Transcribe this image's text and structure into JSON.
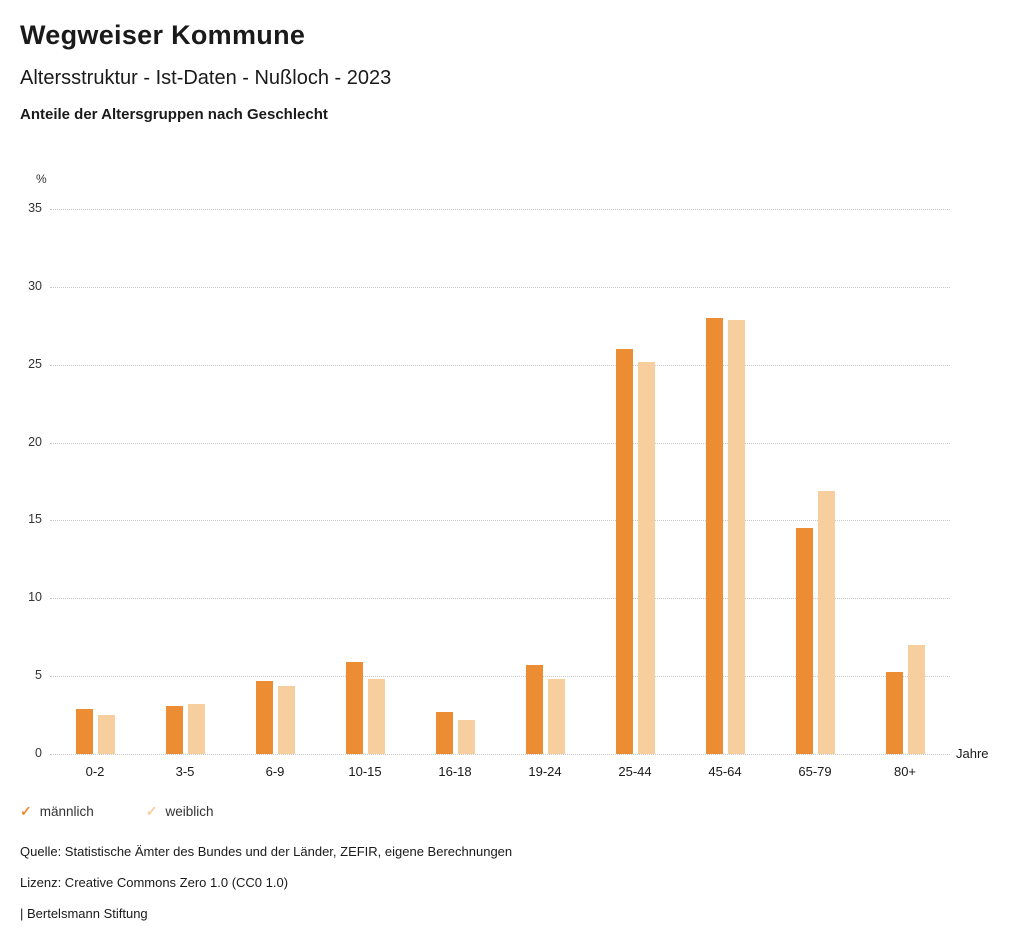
{
  "header": {
    "title": "Wegweiser Kommune",
    "subtitle": "Altersstruktur - Ist-Daten - Nußloch - 2023",
    "caption": "Anteile der Altersgruppen nach Geschlecht"
  },
  "chart_data": {
    "type": "bar",
    "unit": "%",
    "xlabel": "Jahre",
    "ylabel": "%",
    "ylim": [
      0,
      35
    ],
    "ytick_step": 5,
    "grid": "horizontal-dotted",
    "legend_position": "bottom-left",
    "categories": [
      "0-2",
      "3-5",
      "6-9",
      "10-15",
      "16-18",
      "19-24",
      "25-44",
      "45-64",
      "65-79",
      "80+"
    ],
    "series": [
      {
        "name": "männlich",
        "color": "#EC8C33",
        "values": [
          2.9,
          3.1,
          4.7,
          5.9,
          2.7,
          5.7,
          26.0,
          28.0,
          14.5,
          5.3
        ]
      },
      {
        "name": "weiblich",
        "color": "#F7CE9D",
        "values": [
          2.5,
          3.2,
          4.4,
          4.8,
          2.2,
          4.8,
          25.2,
          27.9,
          16.9,
          7.0
        ]
      }
    ]
  },
  "footer": {
    "source": "Quelle: Statistische Ämter des Bundes und der Länder, ZEFIR, eigene Berechnungen",
    "license": "Lizenz: Creative Commons Zero 1.0 (CC0 1.0)",
    "attribution": "| Bertelsmann Stiftung"
  }
}
